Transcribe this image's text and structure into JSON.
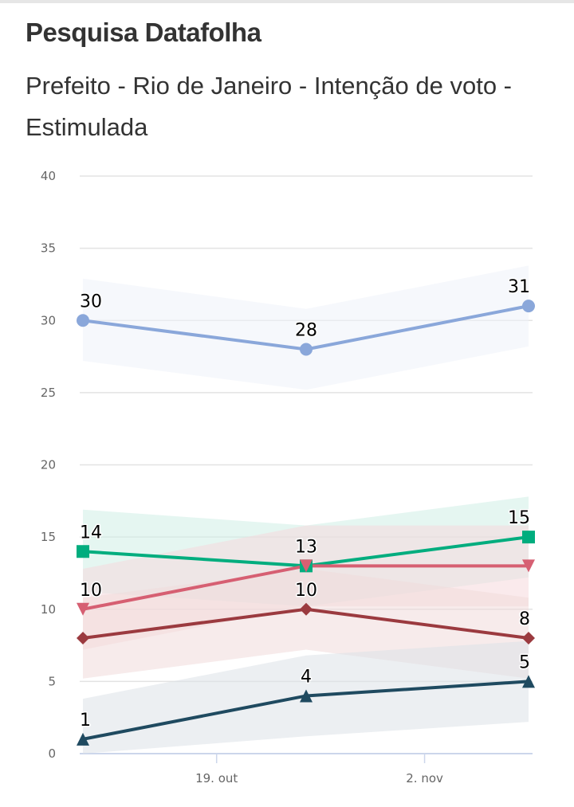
{
  "header": {
    "title": "Pesquisa Datafolha",
    "subtitle": "Prefeito - Rio de Janeiro - Intenção de voto - Estimulada"
  },
  "chart_data": {
    "type": "line",
    "title": "Pesquisa Datafolha",
    "subtitle": "Prefeito - Rio de Janeiro - Intenção de voto - Estimulada",
    "xlabel": "",
    "ylabel": "",
    "ylim": [
      0,
      40
    ],
    "yticks": [
      "0",
      "5",
      "10",
      "15",
      "20",
      "25",
      "30",
      "35",
      "40"
    ],
    "ytick_values": [
      0,
      5,
      10,
      15,
      20,
      25,
      30,
      35,
      40
    ],
    "xticks": [
      "19. out",
      "2. nov"
    ],
    "xtick_positions_days": [
      14,
      28
    ],
    "x_days": [
      5,
      20,
      35
    ],
    "x_range_days": [
      4.5,
      35.5
    ],
    "grid": true,
    "legend": "none",
    "series": [
      {
        "name": "series-1",
        "color": "#8aa7da",
        "band_color": "#eef2f9",
        "marker": "circle",
        "values": [
          30,
          28,
          31
        ],
        "band_low": [
          27.2,
          25.2,
          28.2
        ],
        "band_high": [
          32.9,
          30.8,
          33.8
        ],
        "labels": [
          "30",
          "28",
          "31"
        ]
      },
      {
        "name": "series-2",
        "color": "#00ad7e",
        "band_color": "#cfeee5",
        "marker": "square",
        "values": [
          14,
          13,
          15
        ],
        "band_low": [
          11.2,
          10.2,
          12.2
        ],
        "band_high": [
          16.9,
          15.8,
          17.8
        ],
        "labels": [
          "14",
          "13",
          "15"
        ]
      },
      {
        "name": "series-3",
        "color": "#d65f72",
        "band_color": "#f5d9dd",
        "marker": "triangle-down",
        "values": [
          10,
          13,
          13
        ],
        "band_low": [
          7.2,
          10.2,
          10.2
        ],
        "band_high": [
          12.8,
          15.8,
          15.8
        ],
        "labels": [
          "10",
          "13",
          ""
        ]
      },
      {
        "name": "series-4",
        "color": "#9b3a3f",
        "band_color": "#f0dada",
        "marker": "diamond",
        "values": [
          8,
          10,
          8
        ],
        "band_low": [
          5.2,
          7.2,
          5.2
        ],
        "band_high": [
          10.8,
          12.8,
          10.8
        ],
        "labels": [
          "",
          "10",
          "8"
        ]
      },
      {
        "name": "series-5",
        "color": "#1f4a60",
        "band_color": "#dde2e7",
        "marker": "triangle-up",
        "values": [
          1,
          4,
          5
        ],
        "band_low": [
          0,
          1.2,
          2.2
        ],
        "band_high": [
          3.8,
          6.8,
          7.8
        ],
        "labels": [
          "1",
          "4",
          "5"
        ]
      }
    ]
  }
}
